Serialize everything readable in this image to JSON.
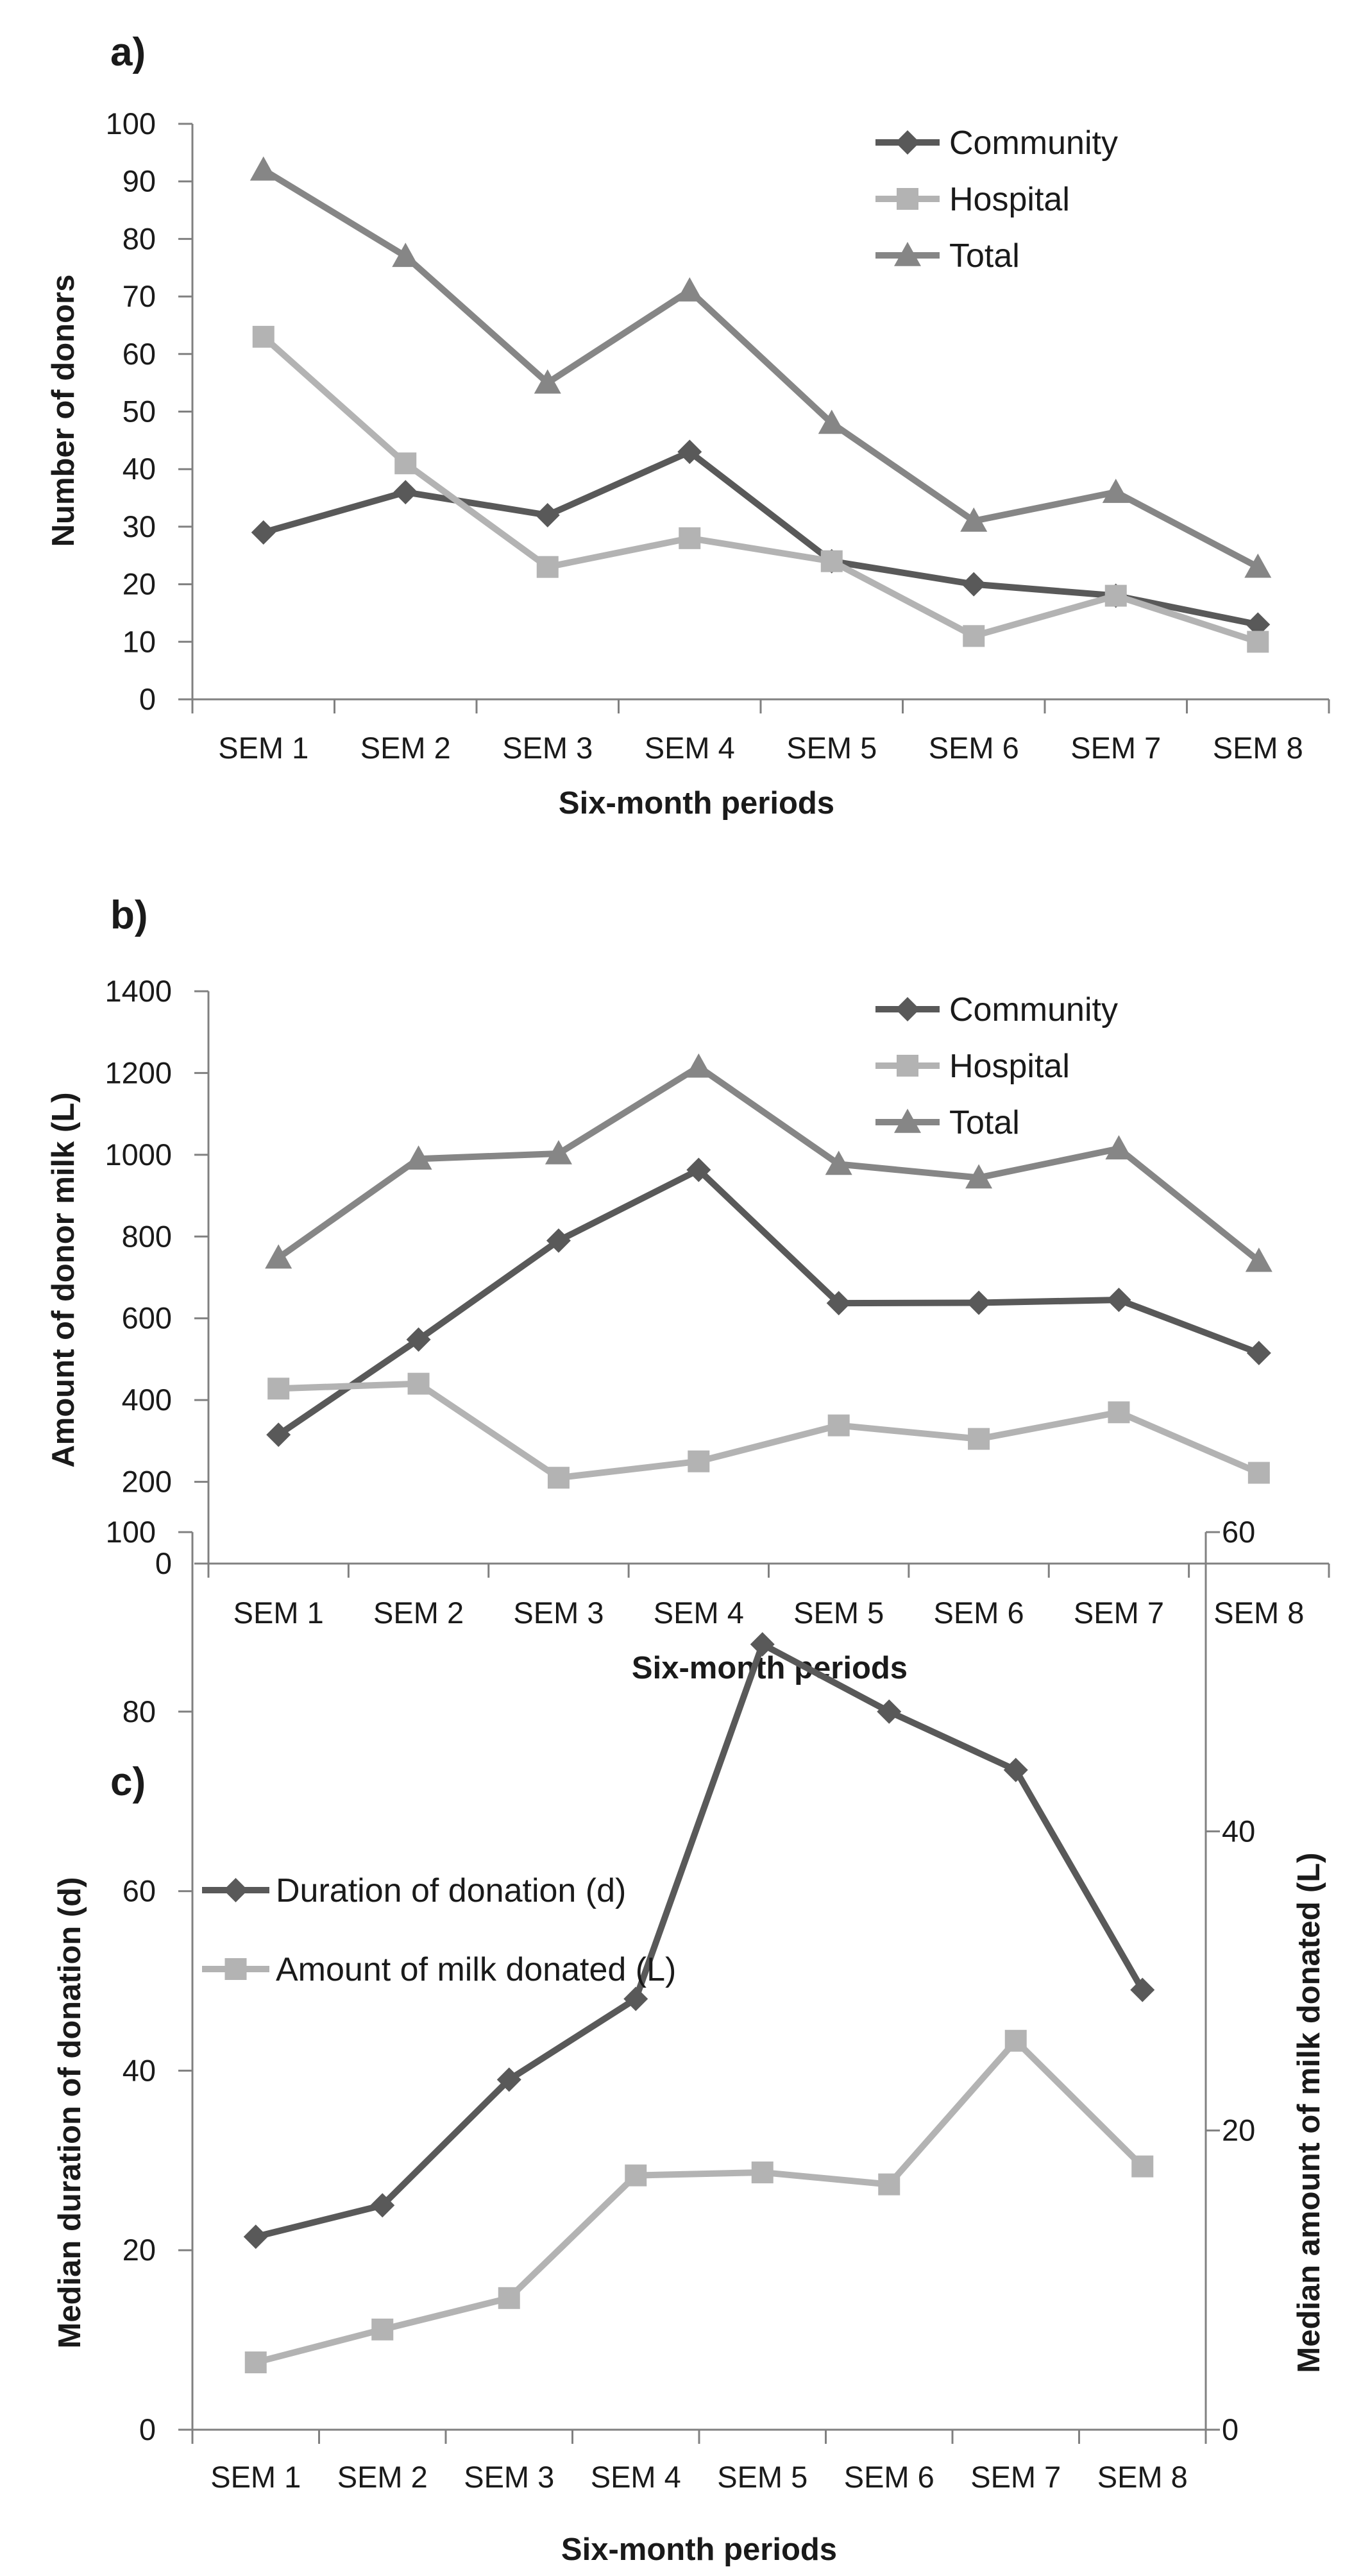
{
  "chart_data": [
    {
      "panel": "a)",
      "type": "line",
      "categories": [
        "SEM 1",
        "SEM 2",
        "SEM 3",
        "SEM 4",
        "SEM 5",
        "SEM 6",
        "SEM 7",
        "SEM 8"
      ],
      "xlabel": "Six-month periods",
      "ylabel": "Number of donors",
      "ylim": [
        0,
        100
      ],
      "yticks": [
        "0",
        "10",
        "20",
        "30",
        "40",
        "50",
        "60",
        "70",
        "80",
        "90",
        "100"
      ],
      "legend_position": "top-right",
      "series": [
        {
          "name": "Community",
          "marker": "diamond",
          "color": "#595959",
          "values": [
            29,
            36,
            32,
            43,
            24,
            20,
            18,
            13
          ]
        },
        {
          "name": "Hospital",
          "marker": "square",
          "color": "#b3b3b3",
          "values": [
            63,
            41,
            23,
            28,
            24,
            11,
            18,
            10
          ]
        },
        {
          "name": "Total",
          "marker": "triangle",
          "color": "#868686",
          "values": [
            92,
            77,
            55,
            71,
            48,
            31,
            36,
            23
          ]
        }
      ]
    },
    {
      "panel": "b)",
      "type": "line",
      "categories": [
        "SEM 1",
        "SEM 2",
        "SEM 3",
        "SEM 4",
        "SEM 5",
        "SEM 6",
        "SEM 7",
        "SEM 8"
      ],
      "xlabel": "Six-month periods",
      "ylabel": "Amount of donor milk (L)",
      "ylim": [
        0,
        1400
      ],
      "yticks": [
        "0",
        "200",
        "400",
        "600",
        "800",
        "1000",
        "1200",
        "1400"
      ],
      "legend_position": "top-right",
      "series": [
        {
          "name": "Community",
          "marker": "diamond",
          "color": "#595959",
          "values": [
            315,
            548,
            790,
            963,
            637,
            638,
            645,
            515
          ]
        },
        {
          "name": "Hospital",
          "marker": "square",
          "color": "#b3b3b3",
          "values": [
            428,
            440,
            210,
            250,
            338,
            305,
            370,
            222
          ]
        },
        {
          "name": "Total",
          "marker": "triangle",
          "color": "#868686",
          "values": [
            748,
            990,
            1003,
            1215,
            977,
            944,
            1015,
            740
          ]
        }
      ]
    },
    {
      "panel": "c)",
      "type": "line",
      "categories": [
        "SEM 1",
        "SEM 2",
        "SEM 3",
        "SEM 4",
        "SEM 5",
        "SEM 6",
        "SEM 7",
        "SEM 8"
      ],
      "xlabel": "Six-month periods",
      "ylabel": "Median duration of donation (d)",
      "ylabel_right": "Median amount of milk donated (L)",
      "ylim": [
        0,
        100
      ],
      "ylim_right": [
        0,
        60
      ],
      "yticks": [
        "0",
        "20",
        "40",
        "60",
        "80",
        "100"
      ],
      "yticks_right": [
        "0",
        "20",
        "40",
        "60"
      ],
      "legend_position": "top-left",
      "series": [
        {
          "name": "Duration of donation (d)",
          "axis": "left",
          "marker": "diamond",
          "color": "#595959",
          "values": [
            21.5,
            25,
            39,
            48,
            87.5,
            80,
            73.5,
            49
          ]
        },
        {
          "name": "Amount of milk donated (L)",
          "axis": "right",
          "marker": "square",
          "color": "#b3b3b3",
          "values": [
            4.5,
            6.7,
            8.8,
            17,
            17.2,
            16.4,
            26,
            17.6
          ]
        }
      ]
    }
  ]
}
